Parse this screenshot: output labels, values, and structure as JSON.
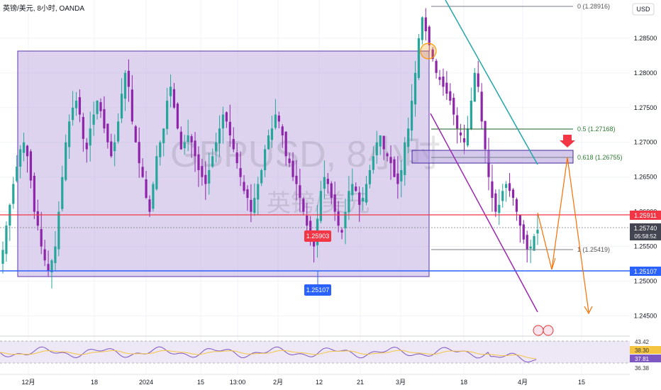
{
  "header": {
    "symbol_title": "英镑/美元, 8小时, OANDA",
    "watermark": "GBPUSD, 8小时",
    "watermark_sub": "英镑/美元"
  },
  "currency_button": "USD",
  "colors": {
    "up": "#26a69a",
    "down": "#8e24aa",
    "zone": "#b39ddb",
    "red_line": "#f23645",
    "blue_line": "#2962ff",
    "teal_line": "#22a6a6",
    "purple_line": "#9c27b0",
    "orange_path": "#ff6d00",
    "rsi": "#7e57c2",
    "rsi_ma": "#f5c542"
  },
  "chart_data": {
    "type": "candlestick",
    "title": "英镑/美元, 8小时, OANDA",
    "ylim": [
      1.2425,
      1.2905
    ],
    "y_ticks": [
      "1.24500",
      "1.25000",
      "1.25500",
      "1.26000",
      "1.26500",
      "1.27000",
      "1.27500",
      "1.28000",
      "1.28500"
    ],
    "x_ticks": [
      "12月",
      "18",
      "2024",
      "15",
      "13:00",
      "2月",
      "12",
      "21",
      "3月",
      "18",
      "4月",
      "15"
    ],
    "key_levels": {
      "resistance": "1.25911",
      "last_price": "1.25740",
      "countdown": "05:58:52",
      "support": "1.25107",
      "box_mid": "1.25903"
    },
    "fib_levels": [
      "0 (1.28916)",
      "0.5 (1.27168)",
      "0.618 (1.26755)",
      "1 (1.25419)"
    ],
    "rsi": {
      "levels": [
        "43.42",
        "38.30",
        "37.81",
        "36.38"
      ]
    },
    "closes": [
      1.2545,
      1.258,
      1.261,
      1.264,
      1.2665,
      1.269,
      1.27,
      1.268,
      1.2645,
      1.26,
      1.258,
      1.255,
      1.253,
      1.2515,
      1.253,
      1.255,
      1.26,
      1.265,
      1.27,
      1.273,
      1.275,
      1.276,
      1.274,
      1.2705,
      1.269,
      1.272,
      1.274,
      1.276,
      1.2745,
      1.272,
      1.27,
      1.268,
      1.27,
      1.273,
      1.277,
      1.28,
      1.278,
      1.273,
      1.27,
      1.267,
      1.265,
      1.262,
      1.26,
      1.264,
      1.268,
      1.27,
      1.272,
      1.276,
      1.278,
      1.275,
      1.272,
      1.269,
      1.27,
      1.271,
      1.27,
      1.268,
      1.266,
      1.265,
      1.264,
      1.266,
      1.268,
      1.27,
      1.272,
      1.274,
      1.273,
      1.271,
      1.269,
      1.267,
      1.265,
      1.263,
      1.262,
      1.26,
      1.262,
      1.264,
      1.266,
      1.269,
      1.271,
      1.272,
      1.274,
      1.273,
      1.271,
      1.268,
      1.267,
      1.265,
      1.264,
      1.262,
      1.26,
      1.258,
      1.256,
      1.255,
      1.259,
      1.263,
      1.265,
      1.264,
      1.262,
      1.26,
      1.258,
      1.257,
      1.26,
      1.263,
      1.264,
      1.263,
      1.261,
      1.262,
      1.264,
      1.266,
      1.268,
      1.27,
      1.271,
      1.269,
      1.268,
      1.267,
      1.265,
      1.264,
      1.266,
      1.27,
      1.272,
      1.276,
      1.28,
      1.285,
      1.288,
      1.286,
      1.284,
      1.282,
      1.28,
      1.279,
      1.278,
      1.277,
      1.276,
      1.274,
      1.272,
      1.271,
      1.27,
      1.272,
      1.276,
      1.28,
      1.278,
      1.273,
      1.269,
      1.265,
      1.262,
      1.26,
      1.261,
      1.263,
      1.264,
      1.263,
      1.262,
      1.26,
      1.258,
      1.256,
      1.2545,
      1.255,
      1.2565,
      1.2574
    ]
  }
}
